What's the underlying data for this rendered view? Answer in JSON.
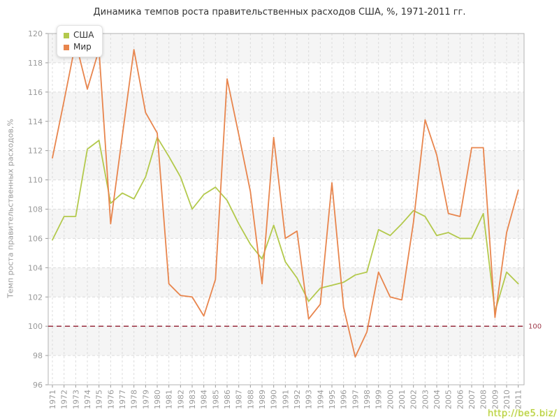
{
  "title": "Динамика темпов роста правительственных расходов США, %, 1971-2011 гг.",
  "watermark": "http://be5.biz/",
  "chart_data": {
    "type": "line",
    "title": "Динамика темпов роста правительственных расходов США, %, 1971-2011 гг.",
    "xlabel": "",
    "ylabel": "Темп роста правительственных расходов,%",
    "ylim": [
      96,
      120
    ],
    "ytick_step": 2,
    "grid": true,
    "legend_position": "top-left",
    "x": [
      1971,
      1972,
      1973,
      1974,
      1975,
      1976,
      1977,
      1978,
      1979,
      1980,
      1981,
      1982,
      1983,
      1984,
      1985,
      1986,
      1987,
      1988,
      1989,
      1990,
      1991,
      1992,
      1993,
      1994,
      1995,
      1996,
      1997,
      1998,
      1999,
      2000,
      2001,
      2002,
      2003,
      2004,
      2005,
      2006,
      2007,
      2008,
      2009,
      2010,
      2011
    ],
    "series": [
      {
        "name": "США",
        "color": "#b3c94c",
        "values": [
          105.9,
          107.5,
          107.5,
          112.1,
          112.7,
          108.4,
          109.1,
          108.7,
          110.2,
          112.9,
          111.6,
          110.2,
          108.0,
          109.0,
          109.5,
          108.6,
          107.0,
          105.6,
          104.6,
          106.9,
          104.4,
          103.3,
          101.7,
          102.6,
          102.8,
          103.0,
          103.5,
          103.7,
          106.6,
          106.2,
          107.0,
          107.9,
          107.5,
          106.2,
          106.4,
          106.0,
          106.0,
          107.7,
          101.0,
          103.7,
          102.9
        ]
      },
      {
        "name": "Мир",
        "color": "#e8854d",
        "values": [
          111.5,
          115.4,
          119.4,
          116.2,
          118.9,
          107.0,
          113.0,
          118.9,
          114.6,
          113.2,
          102.9,
          102.1,
          102.0,
          100.7,
          103.2,
          116.9,
          113.1,
          109.2,
          102.9,
          112.9,
          106.0,
          106.5,
          100.5,
          101.5,
          109.8,
          101.3,
          97.9,
          99.6,
          103.7,
          102.0,
          101.8,
          107.1,
          114.1,
          111.7,
          107.7,
          107.5,
          112.2,
          112.2,
          100.6,
          106.4,
          109.3
        ]
      }
    ],
    "reference_line": {
      "y": 100,
      "label": "100",
      "color": "#9e3a4a"
    },
    "colors": {
      "gridline": "#dcdcdc",
      "frame": "#b3b3b3",
      "band": "#f5f5f5",
      "tick_text": "#9a9a9a"
    }
  }
}
